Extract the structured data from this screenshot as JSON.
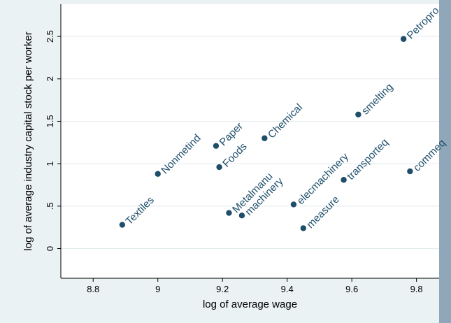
{
  "chart_data": {
    "type": "scatter",
    "title": "",
    "xlabel": "log of average wage",
    "ylabel": "log of average industry capital stock per worker",
    "xlim": [
      8.7,
      9.87
    ],
    "ylim": [
      -0.35,
      2.88
    ],
    "x_ticks": [
      8.8,
      9,
      9.2,
      9.4,
      9.6,
      9.8
    ],
    "x_tick_labels": [
      "8.8",
      "9",
      "9.2",
      "9.4",
      "9.6",
      "9.8"
    ],
    "y_ticks": [
      0,
      0.5,
      1,
      1.5,
      2,
      2.5
    ],
    "y_tick_labels": [
      "0",
      ".5",
      "1",
      "1.5",
      "2",
      "2.5"
    ],
    "grid": true,
    "colors": {
      "outer_background": "#eaf2f3",
      "plot_background": "#ffffff",
      "right_band": "#8fa7b8",
      "marker": "#1f4e6b",
      "gridline": "#e4ecee",
      "axis": "#000000"
    },
    "points": [
      {
        "label": "Petropro",
        "x": 9.76,
        "y": 2.47
      },
      {
        "label": "smelting",
        "x": 9.62,
        "y": 1.58
      },
      {
        "label": "Chemical",
        "x": 9.33,
        "y": 1.3
      },
      {
        "label": "Paper",
        "x": 9.18,
        "y": 1.21
      },
      {
        "label": "Foods",
        "x": 9.19,
        "y": 0.96
      },
      {
        "label": "Nonmetind",
        "x": 9.0,
        "y": 0.88
      },
      {
        "label": "commeq",
        "x": 9.78,
        "y": 0.91
      },
      {
        "label": "transporteq",
        "x": 9.575,
        "y": 0.81
      },
      {
        "label": "elecmachinery",
        "x": 9.42,
        "y": 0.52
      },
      {
        "label": "Metalmanu",
        "x": 9.22,
        "y": 0.42
      },
      {
        "label": "machinery",
        "x": 9.26,
        "y": 0.39
      },
      {
        "label": "Textiles",
        "x": 8.89,
        "y": 0.28
      },
      {
        "label": "measure",
        "x": 9.45,
        "y": 0.24
      }
    ]
  }
}
